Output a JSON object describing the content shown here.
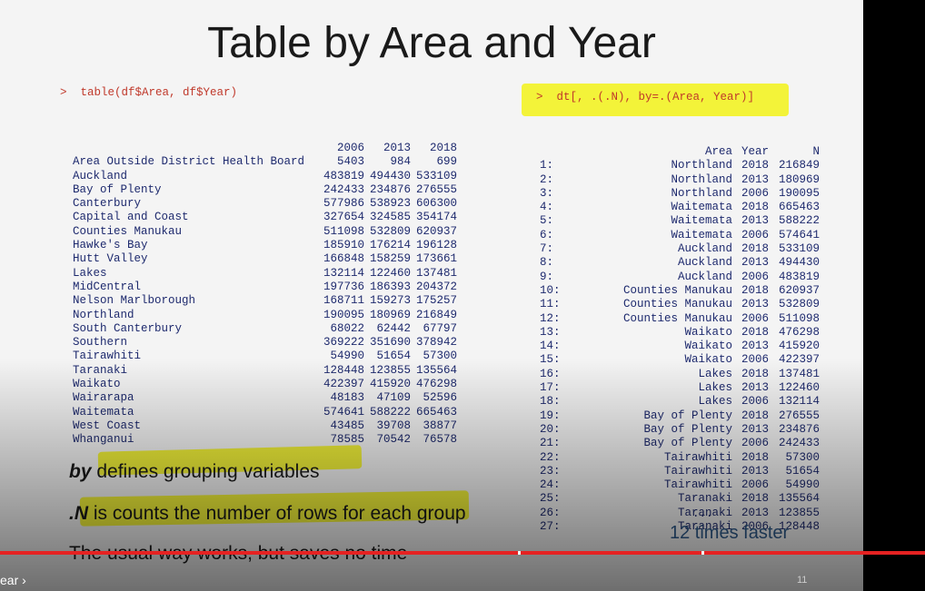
{
  "slide": {
    "title": "Table by Area and Year",
    "left_command": ">  table(df$Area, df$Year)",
    "right_command": ">  dt[, .(.N), by=.(Area, Year)]",
    "left_table": {
      "years": [
        "2006",
        "2013",
        "2018"
      ],
      "rows": [
        {
          "area": "Area Outside District Health Board",
          "v": [
            "5403",
            "984",
            "699"
          ]
        },
        {
          "area": "Auckland",
          "v": [
            "483819",
            "494430",
            "533109"
          ]
        },
        {
          "area": "Bay of Plenty",
          "v": [
            "242433",
            "234876",
            "276555"
          ]
        },
        {
          "area": "Canterbury",
          "v": [
            "577986",
            "538923",
            "606300"
          ]
        },
        {
          "area": "Capital and Coast",
          "v": [
            "327654",
            "324585",
            "354174"
          ]
        },
        {
          "area": "Counties Manukau",
          "v": [
            "511098",
            "532809",
            "620937"
          ]
        },
        {
          "area": "Hawke's Bay",
          "v": [
            "185910",
            "176214",
            "196128"
          ]
        },
        {
          "area": "Hutt Valley",
          "v": [
            "166848",
            "158259",
            "173661"
          ]
        },
        {
          "area": "Lakes",
          "v": [
            "132114",
            "122460",
            "137481"
          ]
        },
        {
          "area": "MidCentral",
          "v": [
            "197736",
            "186393",
            "204372"
          ]
        },
        {
          "area": "Nelson Marlborough",
          "v": [
            "168711",
            "159273",
            "175257"
          ]
        },
        {
          "area": "Northland",
          "v": [
            "190095",
            "180969",
            "216849"
          ]
        },
        {
          "area": "South Canterbury",
          "v": [
            "68022",
            "62442",
            "67797"
          ]
        },
        {
          "area": "Southern",
          "v": [
            "369222",
            "351690",
            "378942"
          ]
        },
        {
          "area": "Tairawhiti",
          "v": [
            "54990",
            "51654",
            "57300"
          ]
        },
        {
          "area": "Taranaki",
          "v": [
            "128448",
            "123855",
            "135564"
          ]
        },
        {
          "area": "Waikato",
          "v": [
            "422397",
            "415920",
            "476298"
          ]
        },
        {
          "area": "Wairarapa",
          "v": [
            "48183",
            "47109",
            "52596"
          ]
        },
        {
          "area": "Waitemata",
          "v": [
            "574641",
            "588222",
            "665463"
          ]
        },
        {
          "area": "West Coast",
          "v": [
            "43485",
            "39708",
            "38877"
          ]
        },
        {
          "area": "Whanganui",
          "v": [
            "78585",
            "70542",
            "76578"
          ]
        }
      ]
    },
    "right_table": {
      "header": [
        "Area",
        "Year",
        "N"
      ],
      "rows": [
        [
          "1:",
          "Northland",
          "2018",
          "216849"
        ],
        [
          "2:",
          "Northland",
          "2013",
          "180969"
        ],
        [
          "3:",
          "Northland",
          "2006",
          "190095"
        ],
        [
          "4:",
          "Waitemata",
          "2018",
          "665463"
        ],
        [
          "5:",
          "Waitemata",
          "2013",
          "588222"
        ],
        [
          "6:",
          "Waitemata",
          "2006",
          "574641"
        ],
        [
          "7:",
          "Auckland",
          "2018",
          "533109"
        ],
        [
          "8:",
          "Auckland",
          "2013",
          "494430"
        ],
        [
          "9:",
          "Auckland",
          "2006",
          "483819"
        ],
        [
          "10:",
          "Counties Manukau",
          "2018",
          "620937"
        ],
        [
          "11:",
          "Counties Manukau",
          "2013",
          "532809"
        ],
        [
          "12:",
          "Counties Manukau",
          "2006",
          "511098"
        ],
        [
          "13:",
          "Waikato",
          "2018",
          "476298"
        ],
        [
          "14:",
          "Waikato",
          "2013",
          "415920"
        ],
        [
          "15:",
          "Waikato",
          "2006",
          "422397"
        ],
        [
          "16:",
          "Lakes",
          "2018",
          "137481"
        ],
        [
          "17:",
          "Lakes",
          "2013",
          "122460"
        ],
        [
          "18:",
          "Lakes",
          "2006",
          "132114"
        ],
        [
          "19:",
          "Bay of Plenty",
          "2018",
          "276555"
        ],
        [
          "20:",
          "Bay of Plenty",
          "2013",
          "234876"
        ],
        [
          "21:",
          "Bay of Plenty",
          "2006",
          "242433"
        ],
        [
          "22:",
          "Tairawhiti",
          "2018",
          "57300"
        ],
        [
          "23:",
          "Tairawhiti",
          "2013",
          "51654"
        ],
        [
          "24:",
          "Tairawhiti",
          "2006",
          "54990"
        ],
        [
          "25:",
          "Taranaki",
          "2018",
          "135564"
        ],
        [
          "26:",
          "Taranaki",
          "2013",
          "123855"
        ],
        [
          "27:",
          "Taranaki",
          "2006",
          "128448"
        ]
      ],
      "ellipsis": "..."
    },
    "bullets": {
      "b1_em": "by",
      "b1_rest": " defines grouping variables",
      "b2_em": ".N",
      "b2_rest": " is counts the number of rows for each group",
      "b3": "The usual way works, but saves no time"
    },
    "faster": "12 times faster",
    "page_number": "11"
  },
  "player": {
    "chapter_label": "ear",
    "progress_color": "#e52222"
  },
  "colors": {
    "highlight": "#f2f217",
    "code_text": "#1e2a6e",
    "command_text": "#c0392b"
  }
}
